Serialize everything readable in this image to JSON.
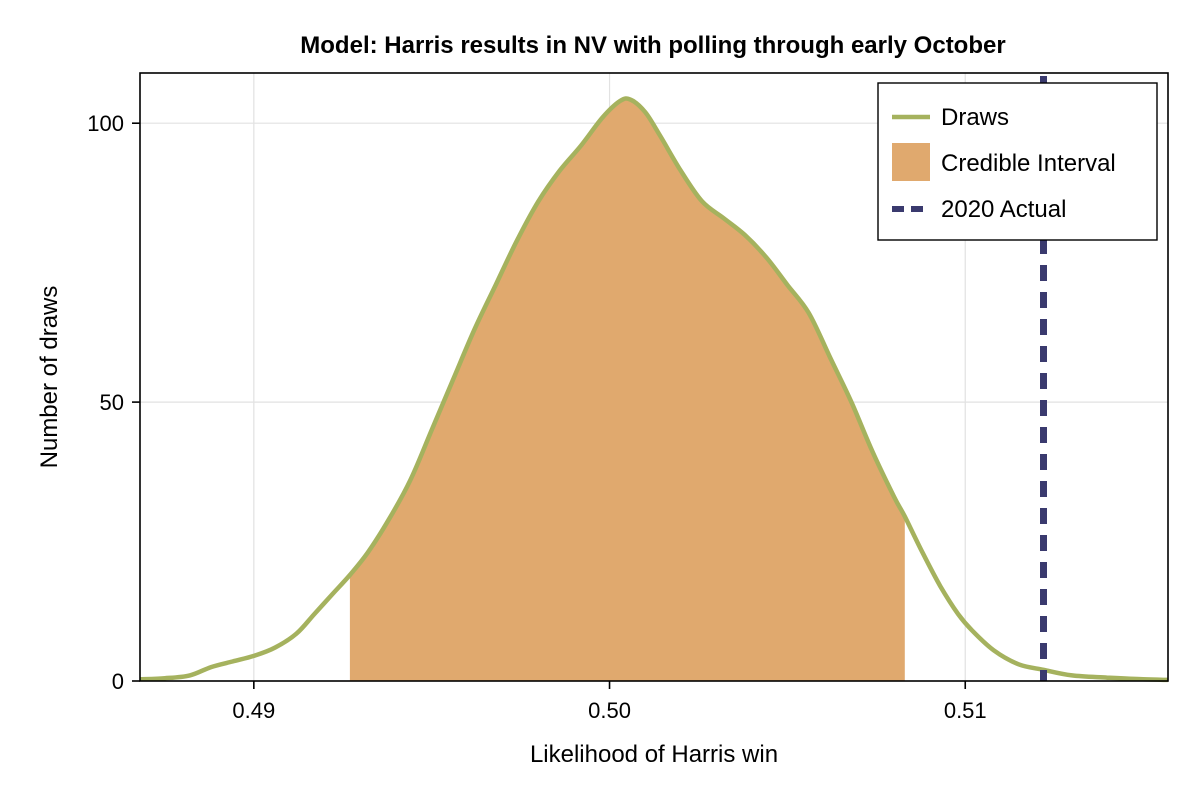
{
  "chart_data": {
    "type": "area",
    "title": "Model: Harris results in NV with polling through early October",
    "xlabel": "Likelihood of Harris win",
    "ylabel": "Number of draws",
    "xlim": [
      0.4868,
      0.5157
    ],
    "ylim": [
      0,
      109
    ],
    "x_ticks": [
      0.49,
      0.5,
      0.51
    ],
    "x_tick_labels": [
      "0.49",
      "0.50",
      "0.51"
    ],
    "y_ticks": [
      0,
      50,
      100
    ],
    "y_tick_labels": [
      "0",
      "50",
      "100"
    ],
    "grid": true,
    "legend": {
      "position": "top-right",
      "entries": [
        {
          "label": "Draws",
          "kind": "line",
          "color": "#A5B25E"
        },
        {
          "label": "Credible Interval",
          "kind": "patch",
          "color": "#E0A96E"
        },
        {
          "label": "2020 Actual",
          "kind": "dashed-line",
          "color": "#3A3A6E"
        }
      ]
    },
    "density_color": "#A5B25E",
    "interval_color": "#E0A96E",
    "actual_color": "#3A3A6E",
    "credible_interval": [
      0.4927,
      0.5083
    ],
    "actual_2020": 0.5122,
    "density": {
      "x": [
        0.4868,
        0.4875,
        0.4882,
        0.4888,
        0.4894,
        0.49,
        0.4906,
        0.4912,
        0.4917,
        0.4922,
        0.4927,
        0.4932,
        0.4938,
        0.4944,
        0.495,
        0.4956,
        0.4962,
        0.4968,
        0.4974,
        0.498,
        0.4986,
        0.4992,
        0.4998,
        0.5003,
        0.5006,
        0.501,
        0.5014,
        0.502,
        0.5026,
        0.5032,
        0.5038,
        0.5044,
        0.505,
        0.5056,
        0.5062,
        0.5068,
        0.5074,
        0.508,
        0.5083,
        0.5088,
        0.5093,
        0.5098,
        0.5102,
        0.5108,
        0.5115,
        0.5122,
        0.513,
        0.514,
        0.515,
        0.5157
      ],
      "y": [
        0.3,
        0.5,
        1,
        2.5,
        3.5,
        4.5,
        6,
        8.5,
        12,
        15.5,
        19,
        23,
        29,
        36,
        45,
        54,
        63,
        71,
        79,
        86,
        91.5,
        96,
        101,
        104,
        104.2,
        102,
        98,
        91.5,
        86,
        83,
        80,
        76,
        71,
        66,
        58,
        50,
        41,
        33,
        29.5,
        23,
        17,
        12,
        9,
        5.5,
        3,
        2,
        1,
        0.6,
        0.3,
        0.2
      ]
    }
  }
}
